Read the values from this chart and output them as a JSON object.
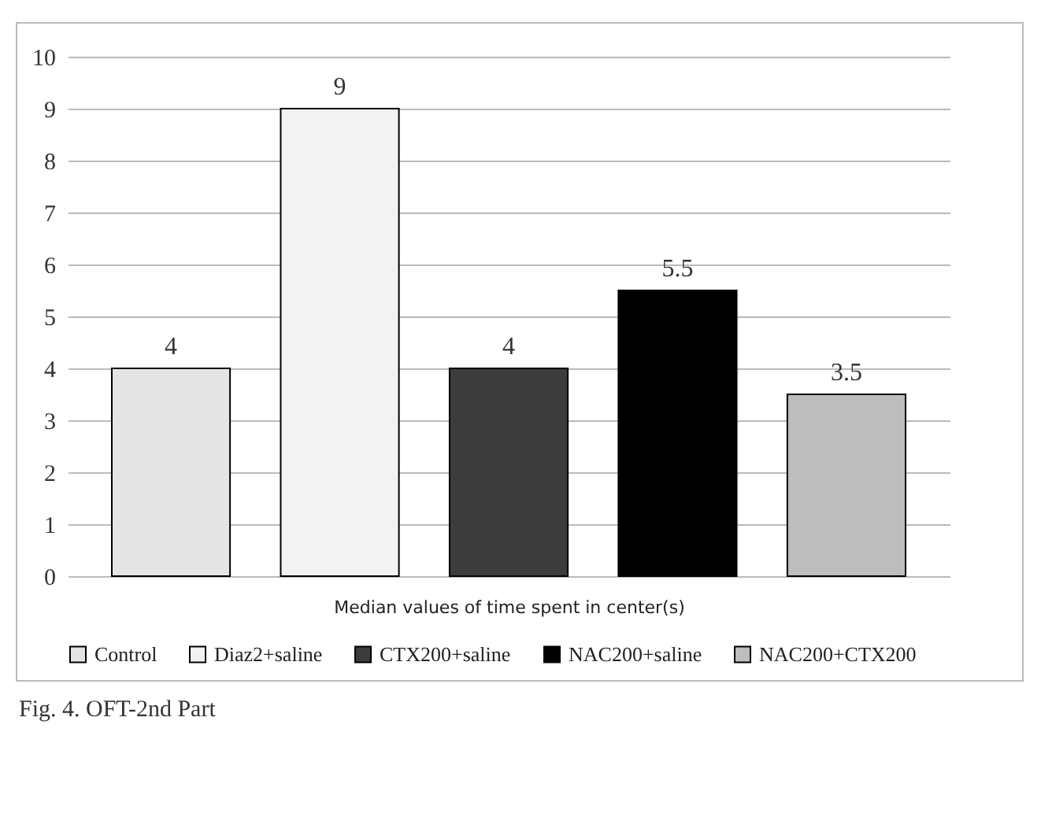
{
  "chart_data": {
    "type": "bar",
    "xlabel": "Median values of  time spent in center(s)",
    "categories": [
      null
    ],
    "series": [
      {
        "name": "Control",
        "color": "#e4e4e4",
        "values": [
          4
        ]
      },
      {
        "name": "Diaz2+saline",
        "color": "#f2f2f2",
        "values": [
          9
        ]
      },
      {
        "name": "CTX200+saline",
        "color": "#3c3c3c",
        "values": [
          4
        ]
      },
      {
        "name": "NAC200+saline",
        "color": "#000000",
        "values": [
          5.5
        ]
      },
      {
        "name": "NAC200+CTX200",
        "color": "#bdbdbd",
        "values": [
          3.5
        ]
      }
    ],
    "ylim": [
      0,
      10
    ],
    "yticks": [
      0,
      1,
      2,
      3,
      4,
      5,
      6,
      7,
      8,
      9,
      10
    ],
    "grid": "y",
    "data_labels": true,
    "legend": "bottom",
    "annotations": [
      "Fig. 4. OFT-2nd Part"
    ]
  }
}
